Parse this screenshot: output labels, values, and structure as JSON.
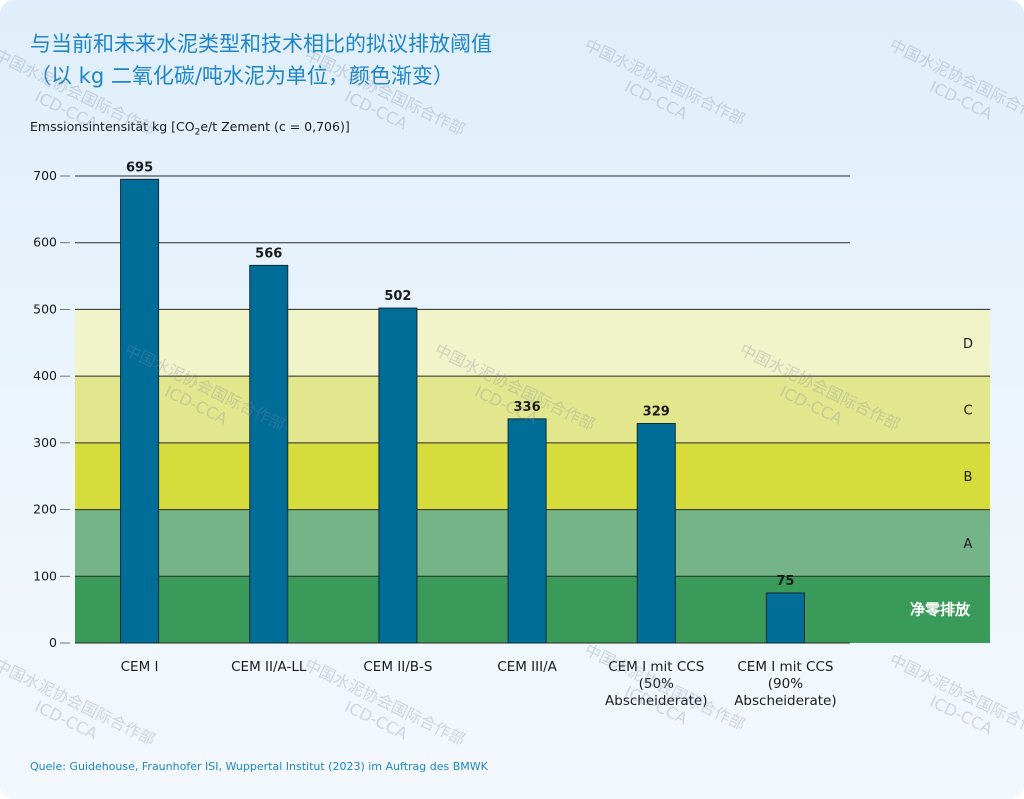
{
  "title_line1": "与当前和未来水泥类型和技术相比的拟议排放阈值",
  "title_line2": "（以 kg 二氧化碳/吨水泥为单位，颜色渐变）",
  "ylabel_prefix": "Emssionsintensität kg [CO",
  "ylabel_sub": "2",
  "ylabel_suffix": "e/t Zement (c = 0,706)]",
  "source": "Quele: Guidehouse, Fraunhofer ISI, Wuppertal Institut (2023) im Auftrag des BMWK",
  "watermark": {
    "line1": "中国水泥协会国际合作部",
    "line2": "ICD-CCA"
  },
  "colors": {
    "bar": "#006d98",
    "zone_net_zero": "#3a9a5a",
    "zone_A": "#74b487",
    "zone_B": "#d5dc3c",
    "zone_C": "#e2e78e",
    "zone_D": "#f1f3c8",
    "title": "#1f86c8"
  },
  "chart_data": {
    "type": "bar",
    "title": "与当前和未来水泥类型和技术相比的拟议排放阈值（以 kg 二氧化碳/吨水泥为单位，颜色渐变）",
    "ylabel": "Emssionsintensität kg [CO2e/t Zement (c = 0,706)]",
    "xlabel": "",
    "categories": [
      [
        "CEM I"
      ],
      [
        "CEM II/A-LL"
      ],
      [
        "CEM II/B-S"
      ],
      [
        "CEM III/A"
      ],
      [
        "CEM I mit CCS",
        "(50%",
        "Abscheiderate)"
      ],
      [
        "CEM I mit CCS",
        "(90%",
        "Abscheiderate)"
      ]
    ],
    "values": [
      695,
      566,
      502,
      336,
      329,
      75
    ],
    "ylim": [
      0,
      700
    ],
    "yticks": [
      0,
      100,
      200,
      300,
      400,
      500,
      600,
      700
    ],
    "grid": true,
    "bands": [
      {
        "label": "净零排放",
        "from": 0,
        "to": 100,
        "color": "#3a9a5a",
        "label_color": "#ffffff",
        "bold": true
      },
      {
        "label": "A",
        "from": 100,
        "to": 200,
        "color": "#74b487",
        "label_color": "#1b1b1b",
        "bold": false
      },
      {
        "label": "B",
        "from": 200,
        "to": 300,
        "color": "#d5dc3c",
        "label_color": "#1b1b1b",
        "bold": false
      },
      {
        "label": "C",
        "from": 300,
        "to": 400,
        "color": "#e2e78e",
        "label_color": "#1b1b1b",
        "bold": false
      },
      {
        "label": "D",
        "from": 400,
        "to": 500,
        "color": "#f1f3c8",
        "label_color": "#1b1b1b",
        "bold": false
      }
    ]
  }
}
